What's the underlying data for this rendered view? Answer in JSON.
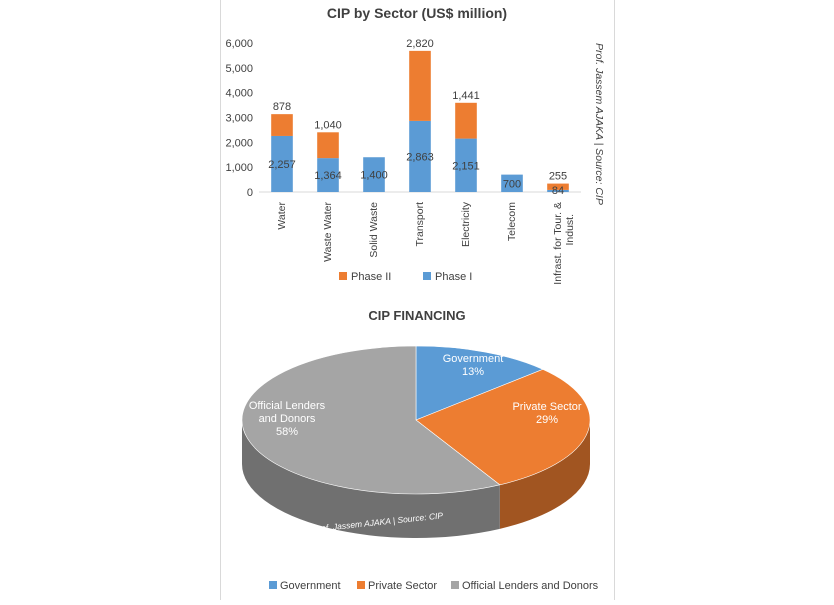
{
  "chart_data": [
    {
      "type": "bar",
      "stacked": true,
      "title": "CIP by Sector (US$ million)",
      "xlabel": "",
      "ylabel": "",
      "categories": [
        "Water",
        "Waste Water",
        "Solid Waste",
        "Transport",
        "Electricity",
        "Telecom",
        "Infrast. for Tour. & Indust."
      ],
      "series": [
        {
          "name": "Phase I",
          "values": [
            2257,
            1364,
            1400,
            2863,
            2151,
            700,
            84
          ],
          "labels": [
            "2,257",
            "1,364",
            "1,400",
            "2,863",
            "2,151",
            "700",
            "84"
          ],
          "color": "#5b9bd5"
        },
        {
          "name": "Phase II",
          "values": [
            878,
            1040,
            null,
            2820,
            1441,
            null,
            255
          ],
          "labels": [
            "878",
            "1,040",
            "",
            "2,820",
            "1,441",
            "",
            "255"
          ],
          "color": "#ed7d31"
        }
      ],
      "ylim": [
        0,
        6000
      ],
      "yticks": [
        0,
        1000,
        2000,
        3000,
        4000,
        5000,
        6000
      ],
      "ytick_labels": [
        "0",
        "1,000",
        "2,000",
        "3,000",
        "4,000",
        "5,000",
        "6,000"
      ],
      "legend": {
        "position": "bottom",
        "entries": [
          "Phase II",
          "Phase I"
        ]
      },
      "grid": false,
      "annotation": "Prof. Jassem AJAKA | Source: CIP"
    },
    {
      "type": "pie",
      "title": "CIP FINANCING",
      "style": "3d",
      "slices": [
        {
          "name": "Government",
          "value": 13,
          "label": "13%",
          "color": "#5b9bd5"
        },
        {
          "name": "Private Sector",
          "value": 29,
          "label": "29%",
          "color": "#ed7d31"
        },
        {
          "name": "Official Lenders and Donors",
          "value": 58,
          "label": "58%",
          "color": "#a5a5a5"
        }
      ],
      "legend": {
        "position": "bottom",
        "entries": [
          "Government",
          "Private Sector",
          "Official Lenders and Donors"
        ]
      },
      "annotation": "Prof. Jassem AJAKA | Source: CIP"
    }
  ]
}
